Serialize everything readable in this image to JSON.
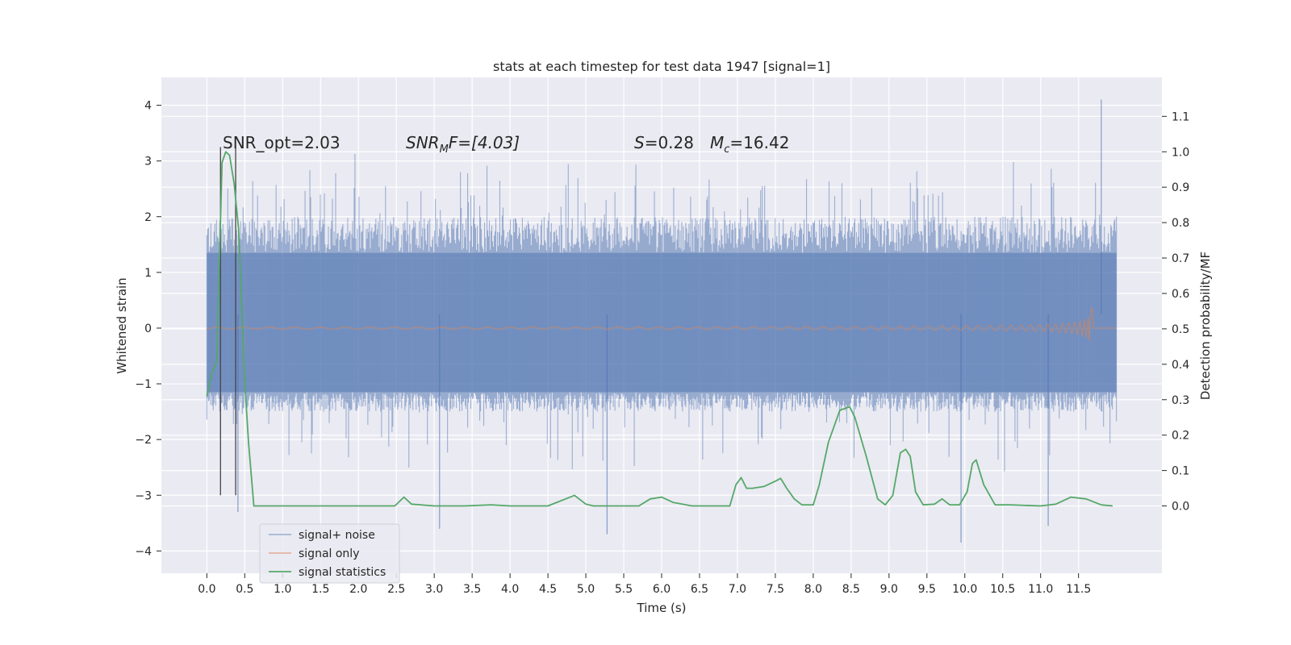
{
  "chart_data": {
    "type": "line",
    "title": "stats at each timestep for test data 1947 [signal=1]",
    "xlabel": "Time (s)",
    "ylabel_left": "Whitened strain",
    "ylabel_right": "Detection probability/MF",
    "xlim": [
      -0.6,
      12.6
    ],
    "ylim_left": [
      -4.4,
      4.5
    ],
    "ylim_right": [
      -0.19,
      1.21
    ],
    "x_ticks": [
      "0.0",
      "0.5",
      "1.0",
      "1.5",
      "2.0",
      "2.5",
      "3.0",
      "3.5",
      "4.0",
      "4.5",
      "5.0",
      "5.5",
      "6.0",
      "6.5",
      "7.0",
      "7.5",
      "8.0",
      "8.5",
      "9.0",
      "9.5",
      "10.0",
      "10.5",
      "11.0",
      "11.5"
    ],
    "y_ticks_left": [
      "4",
      "3",
      "2",
      "1",
      "0",
      "−1",
      "−2",
      "−3",
      "−4"
    ],
    "y_ticks_right": [
      "1.1",
      "1.0",
      "0.9",
      "0.8",
      "0.7",
      "0.6",
      "0.5",
      "0.4",
      "0.3",
      "0.2",
      "0.1",
      "0.0"
    ],
    "grid": true,
    "legend_position": "lower-left",
    "annotations": {
      "snr_opt": "SNR_opt=2.03",
      "snr_mf_base": "SNR",
      "snr_mf_sub": "M",
      "snr_mf_rest": "F=[4.03]",
      "s_sym": "S",
      "s_val": "=0.28",
      "mc_sym": "M",
      "mc_sub": "c",
      "mc_val": "=16.42"
    },
    "vlines_x": [
      0.18,
      0.38
    ],
    "series": [
      {
        "name": "signal+ noise",
        "color": "#4c72b0",
        "alpha": 0.5,
        "x_range": [
          0.0,
          12.0
        ],
        "typical_band": [
          -1.5,
          2.0
        ],
        "extremes": [
          {
            "x": 11.8,
            "y": 4.1
          },
          {
            "x": 9.95,
            "y": -3.85
          },
          {
            "x": 0.41,
            "y": -3.3
          },
          {
            "x": 5.28,
            "y": -3.7
          },
          {
            "x": 3.07,
            "y": -3.6
          },
          {
            "x": 11.1,
            "y": -3.55
          }
        ]
      },
      {
        "name": "signal only",
        "color": "#dd8452",
        "chirp_end_x": 11.68,
        "peak_amplitude": 0.4
      },
      {
        "name": "signal statistics",
        "color": "#55a868",
        "axis": "right",
        "x": [
          0.0,
          0.06,
          0.13,
          0.2,
          0.25,
          0.3,
          0.36,
          0.42,
          0.5,
          0.55,
          0.62,
          0.7,
          1.0,
          2.0,
          2.48,
          2.6,
          2.7,
          3.0,
          3.4,
          3.75,
          4.0,
          4.5,
          4.85,
          5.0,
          5.1,
          5.3,
          5.7,
          5.85,
          6.0,
          6.15,
          6.4,
          6.9,
          6.98,
          7.05,
          7.12,
          7.2,
          7.35,
          7.5,
          7.57,
          7.65,
          7.75,
          7.85,
          8.0,
          8.08,
          8.2,
          8.35,
          8.48,
          8.55,
          8.7,
          8.85,
          8.95,
          9.05,
          9.15,
          9.22,
          9.28,
          9.35,
          9.45,
          9.6,
          9.7,
          9.8,
          9.93,
          10.03,
          10.1,
          10.15,
          10.25,
          10.4,
          10.6,
          11.0,
          11.2,
          11.4,
          11.6,
          11.8,
          11.95
        ],
        "y": [
          0.31,
          0.37,
          0.41,
          0.97,
          1.0,
          0.99,
          0.91,
          0.78,
          0.35,
          0.18,
          0.0,
          0.0,
          0.0,
          0.0,
          0.0,
          0.025,
          0.005,
          0.0,
          0.0,
          0.003,
          0.0,
          0.0,
          0.03,
          0.005,
          0.0,
          0.0,
          0.0,
          0.02,
          0.025,
          0.01,
          0.0,
          0.0,
          0.06,
          0.08,
          0.05,
          0.05,
          0.055,
          0.07,
          0.078,
          0.05,
          0.02,
          0.003,
          0.003,
          0.06,
          0.18,
          0.27,
          0.28,
          0.25,
          0.14,
          0.02,
          0.003,
          0.03,
          0.15,
          0.16,
          0.14,
          0.04,
          0.003,
          0.005,
          0.02,
          0.003,
          0.003,
          0.04,
          0.12,
          0.13,
          0.06,
          0.003,
          0.003,
          0.0,
          0.005,
          0.025,
          0.02,
          0.003,
          0.0
        ]
      }
    ]
  }
}
